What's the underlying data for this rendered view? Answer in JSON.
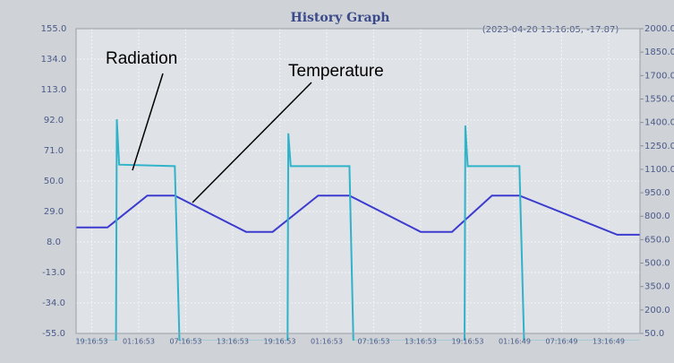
{
  "chart_data": {
    "type": "line",
    "title": "History Graph",
    "cursor_label": "(2023-04-20 13:16:05, -17.87)",
    "annotations": [
      "Radiation",
      "Temperature"
    ],
    "xlim": [
      0,
      72
    ],
    "xticks": [
      {
        "value": 2,
        "label": "19:16:53"
      },
      {
        "value": 8,
        "label": "01:16:53"
      },
      {
        "value": 14,
        "label": "07:16:53"
      },
      {
        "value": 20,
        "label": "13:16:53"
      },
      {
        "value": 26,
        "label": "19:16:53"
      },
      {
        "value": 32,
        "label": "01:16:53"
      },
      {
        "value": 38,
        "label": "07:16:53"
      },
      {
        "value": 44,
        "label": "13:16:53"
      },
      {
        "value": 50,
        "label": "19:16:53"
      },
      {
        "value": 56,
        "label": "01:16:49"
      },
      {
        "value": 62,
        "label": "07:16:49"
      },
      {
        "value": 68,
        "label": "13:16:49"
      }
    ],
    "ylim": [
      -55,
      155
    ],
    "yticks": [
      {
        "value": 155,
        "label": "155.0"
      },
      {
        "value": 134,
        "label": "134.0"
      },
      {
        "value": 113,
        "label": "113.0"
      },
      {
        "value": 92,
        "label": "92.0"
      },
      {
        "value": 71,
        "label": "71.0"
      },
      {
        "value": 50,
        "label": "50.0"
      },
      {
        "value": 29,
        "label": "29.0"
      },
      {
        "value": 8,
        "label": "8.0"
      },
      {
        "value": -13,
        "label": "-13.0"
      },
      {
        "value": -34,
        "label": "-34.0"
      },
      {
        "value": -55,
        "label": "-55.0"
      }
    ],
    "y2lim": [
      50,
      2000
    ],
    "y2ticks": [
      {
        "value": 2000,
        "label": "2000.0"
      },
      {
        "value": 1850,
        "label": "1850.0"
      },
      {
        "value": 1700,
        "label": "1700.0"
      },
      {
        "value": 1550,
        "label": "1550.0"
      },
      {
        "value": 1400,
        "label": "1400.0"
      },
      {
        "value": 1250,
        "label": "1250.0"
      },
      {
        "value": 1100,
        "label": "1100.0"
      },
      {
        "value": 950,
        "label": "950.0"
      },
      {
        "value": 800,
        "label": "800.0"
      },
      {
        "value": 650,
        "label": "650.0"
      },
      {
        "value": 500,
        "label": "500.0"
      },
      {
        "value": 350,
        "label": "350.0"
      },
      {
        "value": 200,
        "label": "200.0"
      },
      {
        "value": 50,
        "label": "50.0"
      }
    ],
    "grid": true,
    "series": [
      {
        "name": "Temperature",
        "color": "#3b3bcf",
        "x": [
          0,
          4,
          9.1,
          12.6,
          21.7,
          25.1,
          30.9,
          34.9,
          44,
          48,
          53.1,
          56.6,
          69.1,
          72
        ],
        "values": [
          18,
          18,
          40,
          40,
          15,
          15,
          40,
          40,
          15,
          15,
          40,
          40,
          13,
          13
        ]
      },
      {
        "name": "Radiation",
        "color": "#2fb3c9",
        "axis": "y2",
        "x": [
          0,
          5.1,
          5.2,
          5.5,
          12.6,
          13.2,
          27.0,
          27.1,
          27.4,
          34.9,
          35.4,
          49.6,
          49.7,
          50.0,
          56.6,
          57.2,
          72
        ],
        "values": [
          0,
          0,
          1420,
          1130,
          1120,
          0,
          0,
          1330,
          1120,
          1120,
          0,
          0,
          1380,
          1120,
          1120,
          0,
          0
        ]
      }
    ]
  }
}
